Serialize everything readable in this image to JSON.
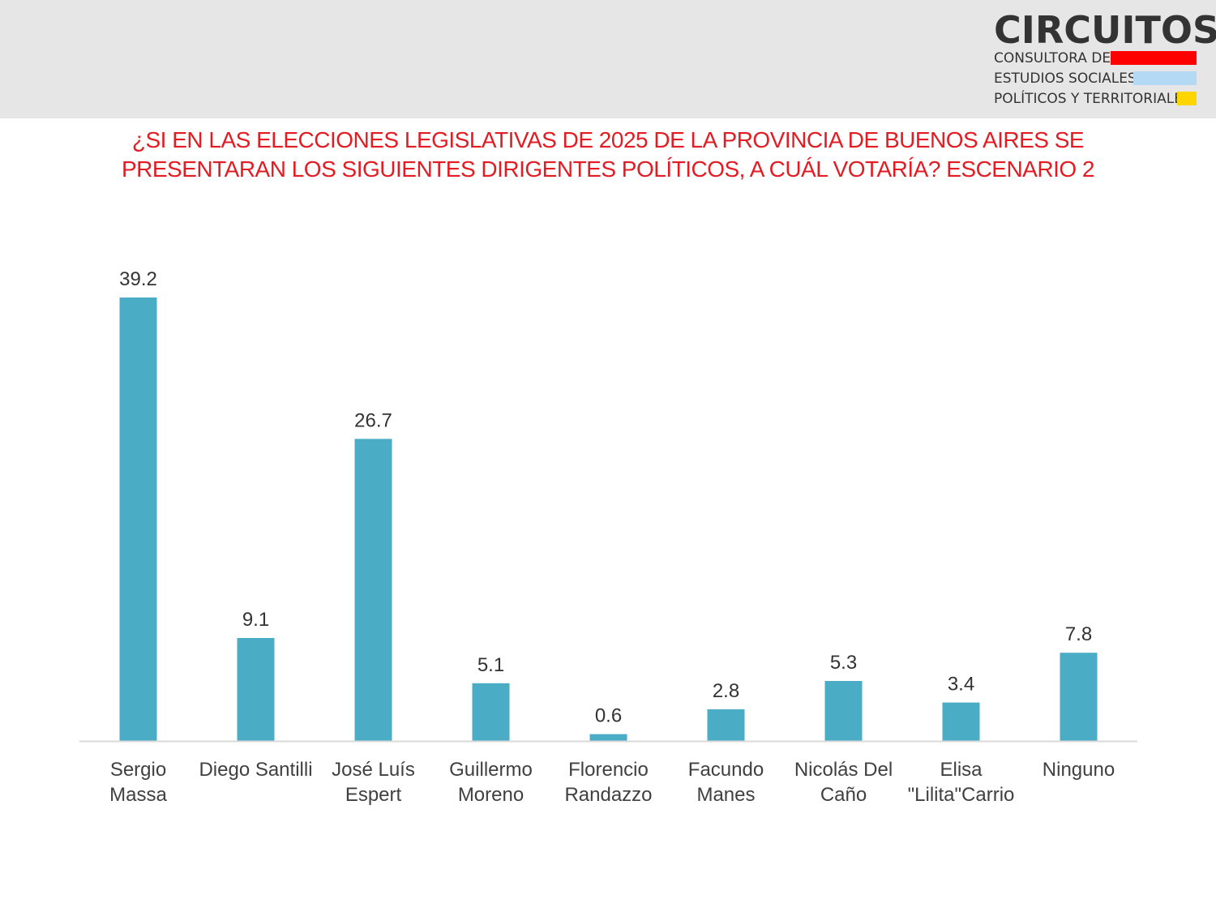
{
  "logo": {
    "name": "CIRCUITOS",
    "line1": "CONSULTORA DE",
    "line2": "ESTUDIOS SOCIALES,",
    "line3": "POLÍTICOS Y TERRITORIALES",
    "stripe_colors": [
      "#ff0000",
      "#b3d9f5",
      "#ffd500"
    ]
  },
  "title_lines": [
    "¿SI EN LAS ELECCIONES LEGISLATIVAS DE 2025 DE LA PROVINCIA DE BUENOS AIRES SE",
    "PRESENTARAN LOS SIGUIENTES DIRIGENTES POLÍTICOS, A CUÁL VOTARÍA? ESCENARIO 2"
  ],
  "colors": {
    "bar": "#4bacc6",
    "title": "#e31c23",
    "axis": "#d9d9d9"
  },
  "chart_data": {
    "type": "bar",
    "title": "¿SI EN LAS ELECCIONES LEGISLATIVAS DE 2025 DE LA PROVINCIA DE BUENOS AIRES SE PRESENTARAN LOS SIGUIENTES DIRIGENTES POLÍTICOS, A CUÁL VOTARÍA? ESCENARIO 2",
    "categories": [
      [
        "Sergio",
        "Massa"
      ],
      [
        "Diego Santilli"
      ],
      [
        "José Luís",
        "Espert"
      ],
      [
        "Guillermo",
        "Moreno"
      ],
      [
        "Florencio",
        "Randazzo"
      ],
      [
        "Facundo",
        "Manes"
      ],
      [
        "Nicolás Del",
        "Caño"
      ],
      [
        "Elisa",
        "\"Lilita\"Carrio"
      ],
      [
        "Ninguno"
      ]
    ],
    "values": [
      39.2,
      9.1,
      26.7,
      5.1,
      0.6,
      2.8,
      5.3,
      3.4,
      7.8
    ],
    "value_labels": [
      "39.2",
      "9.1",
      "26.7",
      "5.1",
      "0.6",
      "2.8",
      "5.3",
      "3.4",
      "7.8"
    ],
    "xlabel": "",
    "ylabel": "",
    "ylim": [
      0,
      39.2
    ],
    "grid": false,
    "legend": "none"
  }
}
